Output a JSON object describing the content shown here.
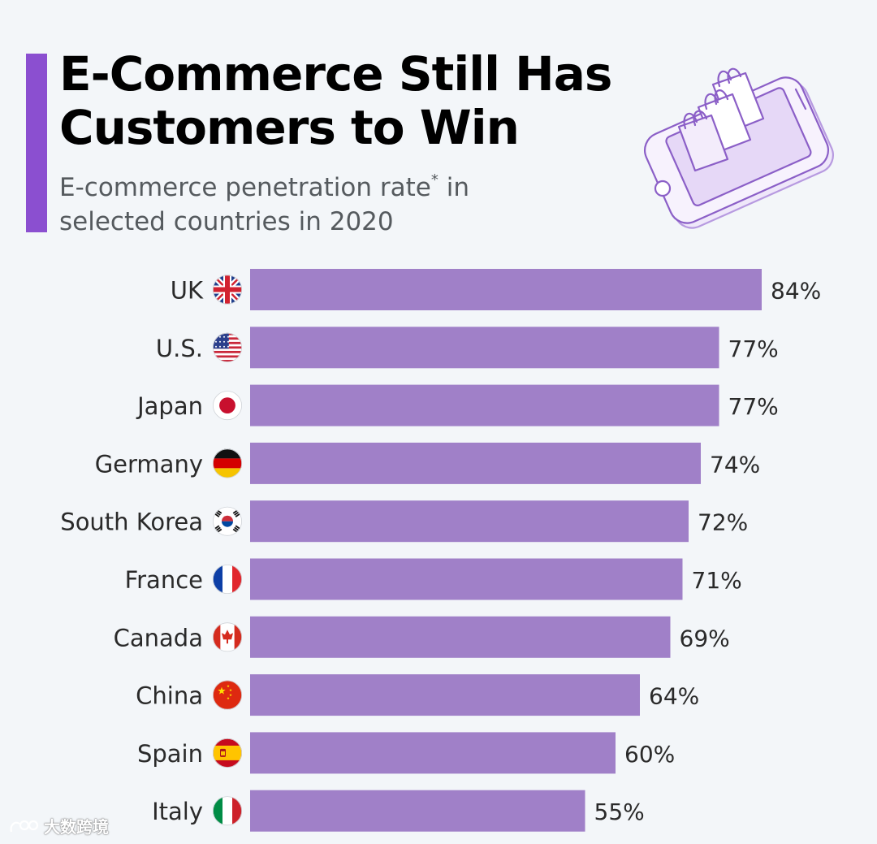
{
  "header": {
    "title_line1": "E-Commerce Still Has",
    "title_line2": "Customers to Win",
    "subtitle_part1": "E-commerce penetration rate",
    "subtitle_mark": "*",
    "subtitle_part2": " in",
    "subtitle_line2": "selected countries in 2020"
  },
  "colors": {
    "bar": "#a080c8",
    "accent": "#8b4fd0",
    "label": "#2a2a2a"
  },
  "chart_data": {
    "type": "bar",
    "orientation": "horizontal",
    "categories": [
      "UK",
      "U.S.",
      "Japan",
      "Germany",
      "South Korea",
      "France",
      "Canada",
      "China",
      "Spain",
      "Italy"
    ],
    "flags": [
      "gb-flag-icon",
      "us-flag-icon",
      "jp-flag-icon",
      "de-flag-icon",
      "kr-flag-icon",
      "fr-flag-icon",
      "ca-flag-icon",
      "cn-flag-icon",
      "es-flag-icon",
      "it-flag-icon"
    ],
    "values": [
      84,
      77,
      77,
      74,
      72,
      71,
      69,
      64,
      60,
      55
    ],
    "value_labels": [
      "84%",
      "77%",
      "77%",
      "74%",
      "72%",
      "71%",
      "69%",
      "64%",
      "60%",
      "55%"
    ],
    "unit": "%",
    "xlim": [
      0,
      100
    ],
    "title": "E-Commerce Still Has Customers to Win"
  },
  "watermark": {
    "text": "大数跨境"
  }
}
